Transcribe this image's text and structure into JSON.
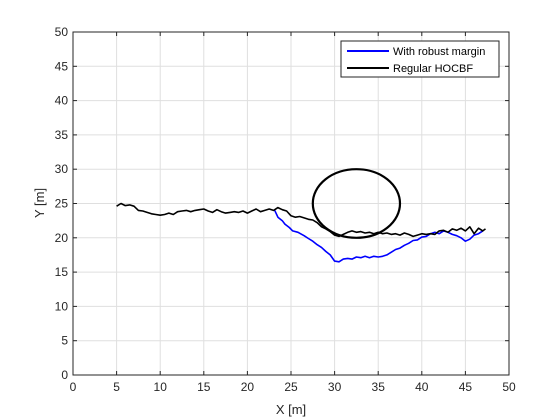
{
  "chart_data": {
    "type": "line",
    "title": "",
    "xlabel": "X [m]",
    "ylabel": "Y [m]",
    "xlim": [
      0,
      50
    ],
    "ylim": [
      0,
      50
    ],
    "xticks": [
      0,
      5,
      10,
      15,
      20,
      25,
      30,
      35,
      40,
      45,
      50
    ],
    "yticks": [
      0,
      5,
      10,
      15,
      20,
      25,
      30,
      35,
      40,
      45,
      50
    ],
    "grid": true,
    "legend_position": "top-right",
    "legend": [
      {
        "label": "With robust margin",
        "color": "#0000ff"
      },
      {
        "label": "Regular HOCBF",
        "color": "#000000"
      }
    ],
    "series": [
      {
        "name": "With robust margin",
        "color": "#0000ff",
        "x": [
          23.1,
          23.5,
          24.0,
          24.3,
          24.8,
          25.2,
          25.8,
          26.5,
          27.0,
          27.5,
          28.0,
          28.5,
          29.0,
          29.5,
          30.0,
          30.5,
          31.0,
          31.5,
          32.0,
          32.5,
          33.0,
          33.5,
          34.0,
          34.5,
          35.0,
          35.5,
          36.0,
          36.5,
          37.0,
          37.5,
          38.0,
          38.5,
          39.0,
          39.5,
          40.0,
          40.5,
          41.0,
          41.5,
          42.0,
          42.5,
          43.0,
          43.5,
          44.0,
          44.5,
          45.0,
          45.5,
          46.0,
          46.5,
          47.0
        ],
        "y": [
          24.1,
          23.0,
          22.5,
          22.0,
          21.5,
          21.0,
          20.8,
          20.3,
          19.9,
          19.5,
          19.0,
          18.6,
          18.0,
          17.5,
          16.6,
          16.5,
          16.9,
          17.0,
          16.9,
          17.2,
          17.1,
          17.3,
          17.1,
          17.3,
          17.2,
          17.3,
          17.5,
          17.9,
          18.3,
          18.5,
          18.9,
          19.2,
          19.6,
          19.7,
          20.1,
          20.2,
          20.6,
          20.8,
          20.6,
          21.0,
          20.8,
          20.5,
          20.3,
          20.0,
          19.5,
          19.8,
          20.4,
          20.6,
          21.0
        ]
      },
      {
        "name": "Regular HOCBF",
        "color": "#000000",
        "x": [
          5.0,
          5.5,
          6.0,
          6.5,
          7.0,
          7.5,
          8.0,
          8.5,
          9.0,
          9.5,
          10.0,
          10.5,
          11.0,
          11.5,
          12.0,
          12.5,
          13.0,
          13.5,
          14.0,
          14.5,
          15.0,
          15.5,
          16.0,
          16.5,
          17.0,
          17.5,
          18.0,
          18.5,
          19.0,
          19.5,
          20.0,
          20.5,
          21.0,
          21.5,
          22.0,
          22.5,
          23.0,
          23.5,
          24.0,
          24.5,
          25.0,
          25.5,
          26.0,
          26.5,
          27.0,
          27.5,
          28.0,
          28.5,
          29.0,
          29.5,
          30.0,
          30.5,
          31.0,
          31.5,
          32.0,
          32.5,
          33.0,
          33.5,
          34.0,
          34.5,
          35.0,
          35.5,
          36.0,
          36.5,
          37.0,
          37.5,
          38.0,
          38.5,
          39.0,
          39.5,
          40.0,
          40.5,
          41.0,
          41.5,
          42.0,
          42.5,
          43.0,
          43.5,
          44.0,
          44.5,
          45.0,
          45.5,
          46.0,
          46.5,
          47.0,
          47.3
        ],
        "y": [
          24.6,
          25.0,
          24.7,
          24.8,
          24.6,
          24.0,
          23.9,
          23.7,
          23.5,
          23.4,
          23.3,
          23.4,
          23.6,
          23.4,
          23.8,
          23.9,
          24.0,
          23.8,
          24.0,
          24.1,
          24.2,
          23.9,
          23.7,
          24.1,
          23.8,
          23.6,
          23.7,
          23.8,
          23.7,
          23.9,
          23.6,
          23.9,
          24.2,
          23.8,
          24.0,
          24.2,
          24.0,
          24.4,
          24.1,
          23.9,
          23.2,
          23.0,
          23.1,
          22.9,
          22.7,
          22.6,
          22.2,
          21.6,
          21.3,
          20.9,
          20.4,
          20.2,
          20.5,
          20.8,
          21.0,
          20.8,
          20.9,
          20.7,
          20.8,
          20.6,
          20.8,
          20.6,
          20.7,
          20.5,
          20.6,
          20.4,
          20.7,
          20.5,
          20.2,
          20.4,
          20.6,
          20.5,
          20.6,
          20.5,
          21.0,
          21.1,
          20.8,
          21.3,
          21.1,
          21.4,
          21.0,
          21.6,
          20.6,
          21.4,
          21.0,
          21.3
        ]
      }
    ],
    "obstacle": {
      "shape": "circle",
      "center": [
        32.5,
        25.0
      ],
      "radius": 5.0,
      "color": "#000000"
    }
  }
}
